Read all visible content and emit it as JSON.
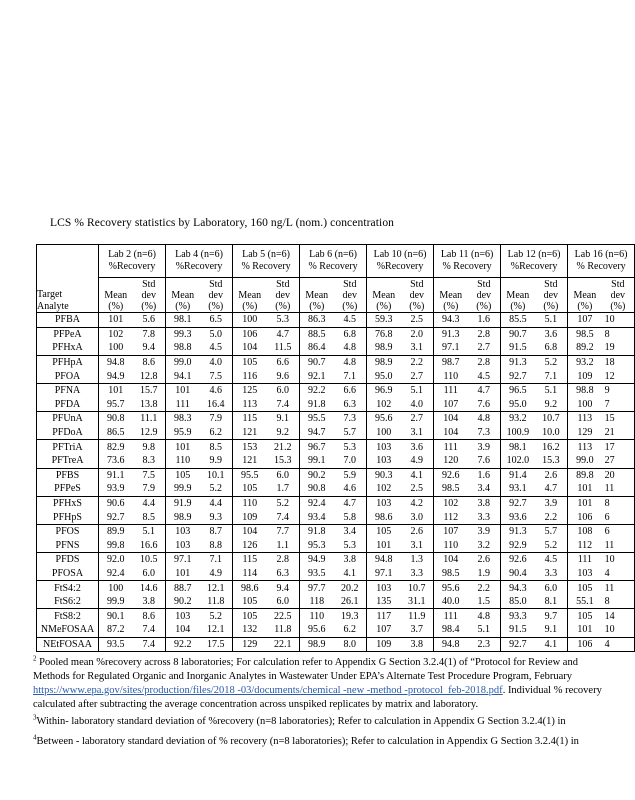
{
  "title": "LCS % Recovery statistics by Laboratory, 160 ng/L (nom.) concentration",
  "colors": {
    "link_blue": "#2A5CAD",
    "text": "#000000"
  },
  "table": {
    "header": {
      "target_lines": [
        "Target",
        "Analyte"
      ],
      "mean_lines": [
        "Mean",
        "(%)"
      ],
      "std_lines": [
        "Std",
        "dev",
        "(%)"
      ],
      "labs": [
        {
          "name": "Lab 2 (n=6)",
          "recovery": "%Recovery"
        },
        {
          "name": "Lab 4 (n=6)",
          "recovery": "%Recovery"
        },
        {
          "name": "Lab 5 (n=6)",
          "recovery": "% Recovery"
        },
        {
          "name": "Lab 6 (n=6)",
          "recovery": "% Recovery"
        },
        {
          "name": "Lab 10 (n=6)",
          "recovery": "%Recovery"
        },
        {
          "name": "Lab 11 (n=6)",
          "recovery": "% Recovery"
        },
        {
          "name": "Lab 12 (n=6)",
          "recovery": "%Recovery"
        },
        {
          "name": "Lab 16 (n=6)",
          "recovery": "% Recovery"
        }
      ]
    },
    "rows": [
      {
        "analyte": "PFBA",
        "values": [
          "101",
          "5.6",
          "98.1",
          "6.5",
          "100",
          "5.3",
          "86.3",
          "4.5",
          "59.3",
          "2.5",
          "94.3",
          "1.6",
          "85.5",
          "5.1",
          "107",
          "10"
        ]
      },
      {
        "analyte": "PFPeA",
        "values": [
          "102",
          "7.8",
          "99.3",
          "5.0",
          "106",
          "4.7",
          "88.5",
          "6.8",
          "76.8",
          "2.0",
          "91.3",
          "2.8",
          "90.7",
          "3.6",
          "98.5",
          "8"
        ]
      },
      {
        "analyte": "PFHxA",
        "values": [
          "100",
          "9.4",
          "98.8",
          "4.5",
          "104",
          "11.5",
          "86.4",
          "4.8",
          "98.9",
          "3.1",
          "97.1",
          "2.7",
          "91.5",
          "6.8",
          "89.2",
          "19"
        ]
      },
      {
        "analyte": "PFHpA",
        "values": [
          "94.8",
          "8.6",
          "99.0",
          "4.0",
          "105",
          "6.6",
          "90.7",
          "4.8",
          "98.9",
          "2.2",
          "98.7",
          "2.8",
          "91.3",
          "5.2",
          "93.2",
          "18"
        ]
      },
      {
        "analyte": "PFOA",
        "values": [
          "94.9",
          "12.8",
          "94.1",
          "7.5",
          "116",
          "9.6",
          "92.1",
          "7.1",
          "95.0",
          "2.7",
          "110",
          "4.5",
          "92.7",
          "7.1",
          "109",
          "12"
        ]
      },
      {
        "analyte": "PFNA",
        "values": [
          "101",
          "15.7",
          "101",
          "4.6",
          "125",
          "6.0",
          "92.2",
          "6.6",
          "96.9",
          "5.1",
          "111",
          "4.7",
          "96.5",
          "5.1",
          "98.8",
          "9"
        ]
      },
      {
        "analyte": "PFDA",
        "values": [
          "95.7",
          "13.8",
          "111",
          "16.4",
          "113",
          "7.4",
          "91.8",
          "6.3",
          "102",
          "4.0",
          "107",
          "7.6",
          "95.0",
          "9.2",
          "100",
          "7"
        ]
      },
      {
        "analyte": "PFUnA",
        "values": [
          "90.8",
          "11.1",
          "98.3",
          "7.9",
          "115",
          "9.1",
          "95.5",
          "7.3",
          "95.6",
          "2.7",
          "104",
          "4.8",
          "93.2",
          "10.7",
          "113",
          "15"
        ]
      },
      {
        "analyte": "PFDoA",
        "values": [
          "86.5",
          "12.9",
          "95.9",
          "6.2",
          "121",
          "9.2",
          "94.7",
          "5.7",
          "100",
          "3.1",
          "104",
          "7.3",
          "100.9",
          "10.0",
          "129",
          "21"
        ]
      },
      {
        "analyte": "PFTriA",
        "values": [
          "82.9",
          "9.8",
          "101",
          "8.5",
          "153",
          "21.2",
          "96.7",
          "5.3",
          "103",
          "3.6",
          "111",
          "3.9",
          "98.1",
          "16.2",
          "113",
          "17"
        ]
      },
      {
        "analyte": "PFTreA",
        "values": [
          "73.6",
          "8.3",
          "110",
          "9.9",
          "121",
          "15.3",
          "99.1",
          "7.0",
          "103",
          "4.9",
          "120",
          "7.6",
          "102.0",
          "15.3",
          "99.0",
          "27"
        ]
      },
      {
        "analyte": "PFBS",
        "values": [
          "91.1",
          "7.5",
          "105",
          "10.1",
          "95.5",
          "6.0",
          "90.2",
          "5.9",
          "90.3",
          "4.1",
          "92.6",
          "1.6",
          "91.4",
          "2.6",
          "89.8",
          "20"
        ]
      },
      {
        "analyte": "PFPeS",
        "values": [
          "93.9",
          "7.9",
          "99.9",
          "5.2",
          "105",
          "1.7",
          "90.8",
          "4.6",
          "102",
          "2.5",
          "98.5",
          "3.4",
          "93.1",
          "4.7",
          "101",
          "11"
        ]
      },
      {
        "analyte": "PFHxS",
        "values": [
          "90.6",
          "4.4",
          "91.9",
          "4.4",
          "110",
          "5.2",
          "92.4",
          "4.7",
          "103",
          "4.2",
          "102",
          "3.8",
          "92.7",
          "3.9",
          "101",
          "8"
        ]
      },
      {
        "analyte": "PFHpS",
        "values": [
          "92.7",
          "8.5",
          "98.9",
          "9.3",
          "109",
          "7.4",
          "93.4",
          "5.8",
          "98.6",
          "3.0",
          "112",
          "3.3",
          "93.6",
          "2.2",
          "106",
          "6"
        ]
      },
      {
        "analyte": "PFOS",
        "values": [
          "89.9",
          "5.1",
          "103",
          "8.7",
          "104",
          "7.7",
          "91.8",
          "3.4",
          "105",
          "2.6",
          "107",
          "3.9",
          "91.3",
          "5.7",
          "108",
          "6"
        ]
      },
      {
        "analyte": "PFNS",
        "values": [
          "99.8",
          "16.6",
          "103",
          "8.8",
          "126",
          "1.1",
          "95.3",
          "5.3",
          "101",
          "3.1",
          "110",
          "3.2",
          "92.9",
          "5.2",
          "112",
          "11"
        ]
      },
      {
        "analyte": "PFDS",
        "values": [
          "92.0",
          "10.5",
          "97.1",
          "7.1",
          "115",
          "2.8",
          "94.9",
          "3.8",
          "94.8",
          "1.3",
          "104",
          "2.6",
          "92.6",
          "4.5",
          "111",
          "10"
        ]
      },
      {
        "analyte": "PFOSA",
        "values": [
          "92.4",
          "6.0",
          "101",
          "4.9",
          "114",
          "6.3",
          "93.5",
          "4.1",
          "97.1",
          "3.3",
          "98.5",
          "1.9",
          "90.4",
          "3.3",
          "103",
          "4"
        ]
      },
      {
        "analyte": "FtS4:2",
        "values": [
          "100",
          "14.6",
          "88.7",
          "12.1",
          "98.6",
          "9.4",
          "97.7",
          "20.2",
          "103",
          "10.7",
          "95.6",
          "2.2",
          "94.3",
          "6.0",
          "105",
          "11"
        ]
      },
      {
        "analyte": "FtS6:2",
        "values": [
          "99.9",
          "3.8",
          "90.2",
          "11.8",
          "105",
          "6.0",
          "118",
          "26.1",
          "135",
          "31.1",
          "40.0",
          "1.5",
          "85.0",
          "8.1",
          "55.1",
          "8"
        ]
      },
      {
        "analyte": "FtS8:2",
        "values": [
          "90.1",
          "8.6",
          "103",
          "5.2",
          "105",
          "22.5",
          "110",
          "19.3",
          "117",
          "11.9",
          "111",
          "4.8",
          "93.3",
          "9.7",
          "105",
          "14"
        ]
      },
      {
        "analyte": "NMeFOSAA",
        "values": [
          "87.2",
          "7.4",
          "104",
          "12.1",
          "132",
          "11.8",
          "95.6",
          "6.2",
          "107",
          "3.7",
          "98.4",
          "5.1",
          "91.5",
          "9.1",
          "101",
          "10"
        ]
      },
      {
        "analyte": "NEtFOSAA",
        "values": [
          "93.5",
          "7.4",
          "92.2",
          "17.5",
          "129",
          "22.1",
          "98.9",
          "8.0",
          "109",
          "3.8",
          "94.8",
          "2.3",
          "92.7",
          "4.1",
          "106",
          "4"
        ]
      }
    ]
  },
  "footnotes": {
    "f2": {
      "marker": "2",
      "line1": " Pooled mean %recovery across 8 laboratories;  For calculation refer to Appendix G Section 3.2.4(1) of “Protocol for Review and",
      "line2": "Methods for Regulated Organic and Inorganic Analytes in Wastewater Under EPA’s Alternate Test Procedure Program, February",
      "url": "https://www.epa.gov/sites/production/files/2018 -03/documents/chemical -new -method -protocol_feb-2018.pdf",
      "line3_after": ". Individual % recovery",
      "line4": "calculated after subtracting the average concentration across unspiked replicates by matrix and laboratory."
    },
    "f3": {
      "marker": "3",
      "text": "Within- laboratory standard  deviation of %recovery (n=8 laboratories);  Refer to calculation in Appendix G Section 3.2.4(1) in"
    },
    "f4": {
      "marker": "4",
      "text": "Between - laboratory standard  deviation of % recovery (n=8 laboratories); Refer to calculation in Appendix G Section 3.2.4(1) in"
    }
  }
}
